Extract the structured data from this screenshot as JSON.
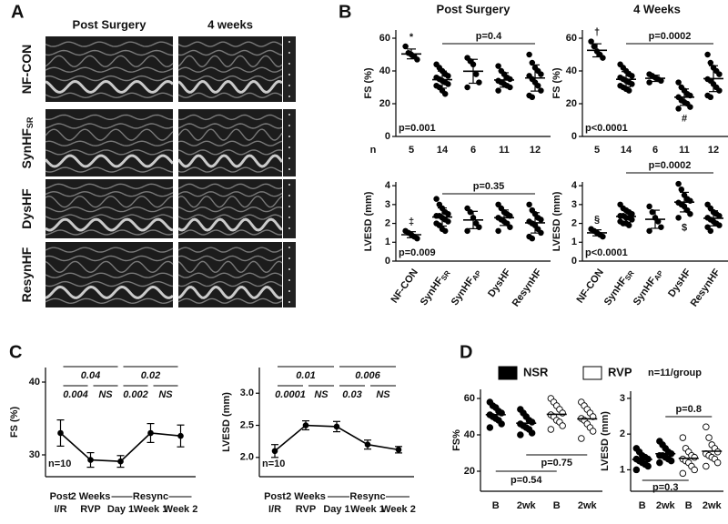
{
  "panel_a": {
    "label": "A",
    "columns": [
      "Post Surgery",
      "4 weeks"
    ],
    "rows": [
      "NF-CON",
      "SynHF",
      "DysHF",
      "ResynHF"
    ],
    "row_subscripts": [
      null,
      "SR",
      null,
      null
    ]
  },
  "panel_b": {
    "label": "B",
    "columns": [
      "Post Surgery",
      "4 Weeks"
    ],
    "n_label": "n"
  },
  "panel_c": {
    "label": "C"
  },
  "panel_d": {
    "label": "D",
    "legend": [
      {
        "name": "NSR",
        "color": "#000000"
      },
      {
        "name": "RVP",
        "color": "#ffffff"
      }
    ],
    "note": "n=11/group"
  },
  "chart_data": [
    {
      "type": "dot",
      "ylabel": "FS (%)",
      "color": "#000000",
      "n": [
        5,
        14,
        6,
        11,
        12
      ],
      "values": [
        [
          55,
          51,
          50,
          49,
          47
        ],
        [
          44,
          42,
          40,
          38,
          37,
          36,
          35,
          34,
          33,
          32,
          31,
          30,
          28,
          26
        ],
        [
          48,
          46,
          44,
          38,
          33,
          30
        ],
        [
          43,
          40,
          38,
          36,
          35,
          34,
          33,
          32,
          31,
          30,
          28
        ],
        [
          50,
          45,
          42,
          40,
          38,
          37,
          35,
          33,
          31,
          28,
          25,
          24
        ]
      ],
      "means": [
        50.4,
        34.7,
        39.8,
        34.5,
        35.7
      ],
      "sds": [
        3,
        5.2,
        7.3,
        4.4,
        8
      ],
      "ylim": [
        0,
        65
      ],
      "yticks": [
        0,
        20,
        40,
        60
      ],
      "symbols_above": [
        "*",
        null,
        null,
        null,
        null
      ],
      "symbols_below": [
        null,
        null,
        null,
        null,
        null
      ],
      "p_bracket": "p=0.4",
      "p_overall": "p=0.001"
    },
    {
      "type": "dot",
      "ylabel": "FS (%)",
      "color": "#000000",
      "n": [
        5,
        14,
        6,
        11,
        12
      ],
      "values": [
        [
          58,
          55,
          52,
          50,
          48
        ],
        [
          44,
          42,
          40,
          38,
          37,
          36,
          35,
          34,
          33,
          32,
          31,
          30,
          29,
          28
        ],
        [
          38,
          37,
          36,
          35,
          34,
          33
        ],
        [
          33,
          30,
          28,
          26,
          25,
          24,
          22,
          21,
          20,
          18,
          17
        ],
        [
          50,
          45,
          42,
          40,
          38,
          35,
          34,
          32,
          30,
          28,
          25,
          24
        ]
      ],
      "means": [
        52.6,
        34.9,
        35.5,
        24,
        35.3
      ],
      "sds": [
        4,
        4.7,
        1.9,
        5,
        7.9
      ],
      "ylim": [
        0,
        65
      ],
      "yticks": [
        0,
        20,
        40,
        60
      ],
      "symbols_above": [
        "†",
        null,
        null,
        null,
        null
      ],
      "symbols_below": [
        null,
        null,
        null,
        "#",
        null
      ],
      "p_bracket": "p=0.0002",
      "p_overall": "p<0.0001"
    },
    {
      "type": "dot",
      "ylabel": "LVESD (mm)",
      "color": "#000000",
      "categories": [
        "NF-CON",
        "SynHF",
        "SynHF",
        "DysHF",
        "ResynHF"
      ],
      "category_subscripts": [
        null,
        "SR",
        "AP",
        null,
        null
      ],
      "values": [
        [
          1.6,
          1.5,
          1.4,
          1.3,
          1.2
        ],
        [
          3.3,
          3.0,
          2.8,
          2.6,
          2.5,
          2.4,
          2.4,
          2.3,
          2.2,
          2.1,
          2.0,
          1.9,
          1.7,
          1.6
        ],
        [
          2.8,
          2.6,
          2.3,
          2.0,
          1.8,
          1.6
        ],
        [
          3.0,
          2.8,
          2.6,
          2.5,
          2.4,
          2.3,
          2.2,
          2.1,
          2.0,
          1.8,
          1.6
        ],
        [
          3.0,
          2.7,
          2.5,
          2.3,
          2.2,
          2.1,
          2.0,
          1.9,
          1.7,
          1.5,
          1.3,
          1.2
        ]
      ],
      "means": [
        1.4,
        2.34,
        2.18,
        2.3,
        2.03
      ],
      "sds": [
        0.16,
        0.48,
        0.46,
        0.41,
        0.54
      ],
      "ylim": [
        0,
        4.2
      ],
      "yticks": [
        0,
        1,
        2,
        3,
        4
      ],
      "symbols_above": [
        "‡",
        null,
        null,
        null,
        null
      ],
      "symbols_below": [
        null,
        null,
        null,
        null,
        null
      ],
      "p_bracket": "p=0.35",
      "p_overall": "p=0.009"
    },
    {
      "type": "dot",
      "ylabel": "LVESD (mm)",
      "color": "#000000",
      "categories": [
        "NF-CON",
        "SynHF",
        "SynHF",
        "DysHF",
        "ResynHF"
      ],
      "category_subscripts": [
        null,
        "SR",
        "AP",
        null,
        null
      ],
      "values": [
        [
          1.7,
          1.6,
          1.5,
          1.4,
          1.3
        ],
        [
          3.0,
          2.8,
          2.7,
          2.6,
          2.5,
          2.4,
          2.4,
          2.3,
          2.3,
          2.2,
          2.1,
          2.0,
          2.0,
          1.9
        ],
        [
          2.9,
          2.6,
          2.3,
          2.1,
          1.8,
          1.6
        ],
        [
          4.1,
          3.8,
          3.5,
          3.3,
          3.2,
          3.1,
          3.0,
          2.9,
          2.7,
          2.5,
          2.3
        ],
        [
          3.0,
          2.8,
          2.6,
          2.5,
          2.4,
          2.3,
          2.2,
          2.1,
          2.0,
          1.9,
          1.8,
          1.6
        ]
      ],
      "means": [
        1.5,
        2.37,
        2.22,
        3.13,
        2.27
      ],
      "sds": [
        0.16,
        0.31,
        0.48,
        0.52,
        0.4
      ],
      "ylim": [
        0,
        4.2
      ],
      "yticks": [
        0,
        1,
        2,
        3,
        4
      ],
      "symbols_above": [
        "§",
        null,
        null,
        null,
        null
      ],
      "symbols_below": [
        null,
        null,
        null,
        "$",
        null
      ],
      "p_bracket": "p=0.0002",
      "p_overall": "p<0.0001"
    },
    {
      "type": "line",
      "ylabel": "FS (%)",
      "color": "#000000",
      "categories": [
        [
          "Post",
          "I/R"
        ],
        [
          "2 Weeks",
          "RVP"
        ],
        [
          "Day 1"
        ],
        [
          "Week 1"
        ],
        [
          "Week 2"
        ]
      ],
      "group_label": "Resync",
      "values": [
        33,
        29.3,
        29.1,
        33,
        32.6
      ],
      "errors": [
        1.8,
        1,
        0.8,
        1.3,
        1.5
      ],
      "ylim": [
        27,
        42
      ],
      "yticks": [
        30,
        40
      ],
      "brackets": [
        "0.04",
        "0.02",
        "0.004",
        "NS",
        "0.002",
        "NS"
      ],
      "note": "n=10"
    },
    {
      "type": "line",
      "ylabel": "LVESD (mm)",
      "color": "#000000",
      "categories": [
        [
          "Post",
          "I/R"
        ],
        [
          "2 Weeks",
          "RVP"
        ],
        [
          "Day 1"
        ],
        [
          "Week 1"
        ],
        [
          "Week 2"
        ]
      ],
      "group_label": "Resync",
      "values": [
        2.1,
        2.5,
        2.48,
        2.2,
        2.12
      ],
      "errors": [
        0.1,
        0.07,
        0.08,
        0.07,
        0.05
      ],
      "ylim": [
        1.7,
        3.4
      ],
      "yticks": [
        {
          "value": 2,
          "label": "2.0"
        },
        2.5,
        {
          "value": 3,
          "label": "3.0"
        }
      ],
      "brackets": [
        "0.01",
        "0.006",
        "0.0001",
        "NS",
        "0.03",
        "NS"
      ],
      "note": "n=10"
    },
    {
      "type": "dot",
      "ylabel": "FS%",
      "categories": [
        "B",
        "2wk",
        "B",
        "2wk"
      ],
      "values": [
        [
          58,
          56,
          55,
          53,
          52,
          51,
          50,
          49,
          48,
          46,
          44
        ],
        [
          54,
          52,
          50,
          48,
          47,
          46,
          45,
          44,
          43,
          41,
          40
        ],
        [
          60,
          58,
          56,
          54,
          52,
          51,
          50,
          48,
          47,
          45,
          43
        ],
        [
          58,
          56,
          54,
          52,
          50,
          49,
          48,
          46,
          44,
          42,
          38
        ]
      ],
      "means": [
        51.1,
        46.4,
        51.3,
        48.8
      ],
      "ylim": [
        9,
        65
      ],
      "yticks": [
        20,
        40,
        60
      ],
      "p_values": [
        "p=0.75",
        "p=0.54"
      ]
    },
    {
      "type": "dot",
      "ylabel": "LVESD (mm)",
      "categories": [
        "B",
        "2wk",
        "B",
        "2wk"
      ],
      "values": [
        [
          1.6,
          1.5,
          1.4,
          1.35,
          1.3,
          1.3,
          1.25,
          1.2,
          1.15,
          1.1,
          1.0
        ],
        [
          1.8,
          1.7,
          1.6,
          1.5,
          1.45,
          1.4,
          1.4,
          1.35,
          1.3,
          1.25,
          1.2
        ],
        [
          1.9,
          1.6,
          1.5,
          1.4,
          1.35,
          1.3,
          1.25,
          1.2,
          1.1,
          1.0,
          0.9
        ],
        [
          2.2,
          1.9,
          1.7,
          1.6,
          1.5,
          1.45,
          1.4,
          1.35,
          1.3,
          1.2,
          1.1
        ]
      ],
      "means": [
        1.29,
        1.45,
        1.32,
        1.52
      ],
      "ylim": [
        0.4,
        3.2
      ],
      "yticks": [
        1,
        2,
        3
      ],
      "p_values": [
        "p=0.8",
        "p=0.3"
      ]
    }
  ]
}
